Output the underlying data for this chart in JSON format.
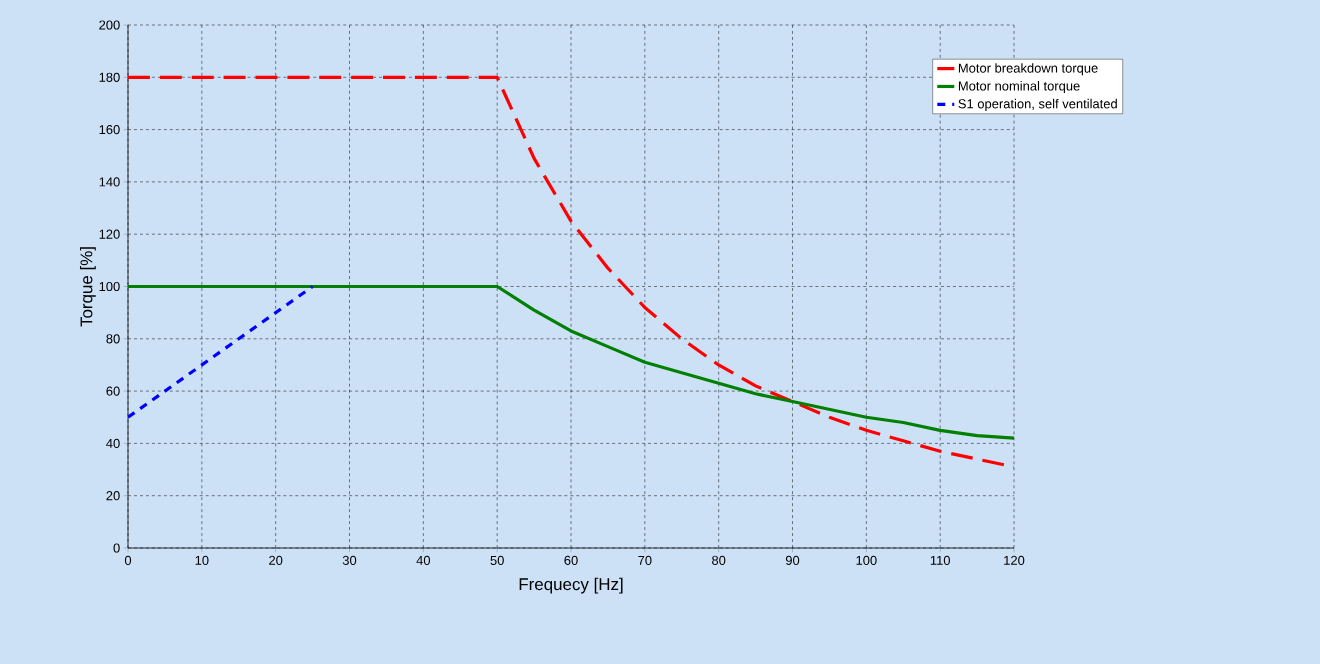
{
  "chart_data": {
    "type": "line",
    "xlabel": "Frequecy [Hz]",
    "ylabel": "Torque [%]",
    "xlim": [
      0,
      120
    ],
    "ylim": [
      0,
      200
    ],
    "xticks": [
      0,
      10,
      20,
      30,
      40,
      50,
      60,
      70,
      80,
      90,
      100,
      110,
      120
    ],
    "yticks": [
      0,
      20,
      40,
      60,
      80,
      100,
      120,
      140,
      160,
      180,
      200
    ],
    "grid": true,
    "legend": "top right",
    "marker": "none",
    "series": [
      {
        "name": "Motor breakdown torque",
        "color": "#ff0000",
        "line_style": "dashed",
        "x": [
          0,
          50,
          55,
          60,
          65,
          70,
          75,
          80,
          85,
          90,
          95,
          100,
          105,
          110,
          115,
          120
        ],
        "values": [
          180,
          180,
          149,
          125,
          107,
          92,
          80,
          70,
          62,
          56,
          50,
          45,
          41,
          37,
          34,
          31
        ]
      },
      {
        "name": "Motor nominal torque",
        "color": "#008000",
        "line_style": "solid",
        "x": [
          0,
          50,
          55,
          60,
          65,
          70,
          75,
          80,
          85,
          90,
          95,
          100,
          105,
          110,
          115,
          120
        ],
        "values": [
          100,
          100,
          91,
          83,
          77,
          71,
          67,
          63,
          59,
          56,
          53,
          50,
          48,
          45,
          43,
          42
        ]
      },
      {
        "name": "S1 operation, self ventilated",
        "color": "#0000ff",
        "line_style": "dotted",
        "x": [
          0,
          25
        ],
        "values": [
          50,
          100
        ]
      }
    ]
  }
}
